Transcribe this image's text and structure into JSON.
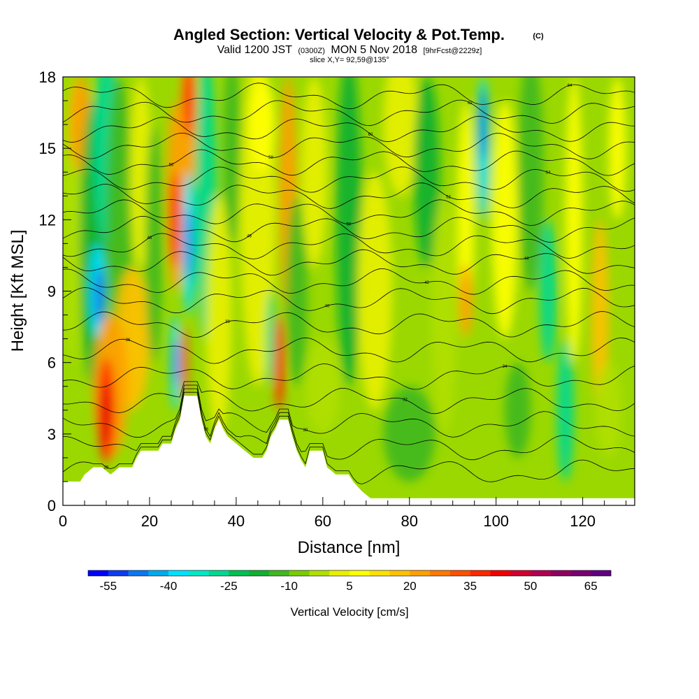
{
  "chart_data": {
    "type": "heatmap",
    "title": "Angled Section: Vertical Velocity & Pot.Temp.",
    "title_tag": "(C)",
    "subtitle_parts": [
      "Valid 1200 JST",
      "(0300Z)",
      "MON 5 Nov 2018",
      "[9hrFcst@2229z]"
    ],
    "slice_label": "slice X,Y= 92,59@135°",
    "xlabel": "Distance [nm]",
    "ylabel": "Height [Kft MSL]",
    "xlim": [
      0,
      132
    ],
    "ylim": [
      0,
      18
    ],
    "x_ticks": [
      "0",
      "20",
      "40",
      "60",
      "80",
      "100",
      "120"
    ],
    "x_tick_values": [
      0,
      20,
      40,
      60,
      80,
      100,
      120
    ],
    "y_ticks": [
      "0",
      "3",
      "6",
      "9",
      "12",
      "15",
      "18"
    ],
    "y_tick_values": [
      0,
      3,
      6,
      9,
      12,
      15,
      18
    ],
    "colorbar": {
      "label": "Vertical Velocity [cm/s]",
      "min": -60,
      "step": 5,
      "tick_labels": [
        "-55",
        "-40",
        "-25",
        "-10",
        "5",
        "20",
        "35",
        "50",
        "65"
      ],
      "tick_values": [
        -55,
        -40,
        -25,
        -10,
        5,
        20,
        35,
        50,
        65
      ],
      "colors": [
        "#0000ff",
        "#0a3cf0",
        "#0a78f0",
        "#00aaf0",
        "#00e0ff",
        "#00e8c8",
        "#00d890",
        "#00c050",
        "#10b030",
        "#40b820",
        "#78cc00",
        "#b0e000",
        "#e8f000",
        "#ffff00",
        "#ffe000",
        "#ffc000",
        "#ffa000",
        "#ff7800",
        "#ff5000",
        "#ff2800",
        "#f00000",
        "#d00030",
        "#b00050",
        "#900060",
        "#780070",
        "#600080"
      ]
    },
    "terrain_profile": [
      [
        0,
        1
      ],
      [
        4,
        1
      ],
      [
        5,
        1.3
      ],
      [
        7,
        1.6
      ],
      [
        9,
        1.6
      ],
      [
        11,
        1.3
      ],
      [
        13,
        1.6
      ],
      [
        16,
        1.6
      ],
      [
        17,
        2
      ],
      [
        18,
        2.3
      ],
      [
        22,
        2.3
      ],
      [
        23,
        2.6
      ],
      [
        25,
        2.6
      ],
      [
        26,
        3.2
      ],
      [
        27,
        3.6
      ],
      [
        28,
        4.6
      ],
      [
        31,
        4.6
      ],
      [
        32,
        3.6
      ],
      [
        33,
        2.9
      ],
      [
        34,
        2.6
      ],
      [
        35,
        3.2
      ],
      [
        36,
        3.6
      ],
      [
        37,
        3.2
      ],
      [
        38,
        2.9
      ],
      [
        40,
        2.6
      ],
      [
        42,
        2.3
      ],
      [
        44,
        2
      ],
      [
        46,
        2
      ],
      [
        47,
        2.3
      ],
      [
        48,
        2.9
      ],
      [
        49,
        3.2
      ],
      [
        50,
        3.6
      ],
      [
        52,
        3.6
      ],
      [
        53,
        2.9
      ],
      [
        54,
        2.3
      ],
      [
        55,
        1.9
      ],
      [
        56,
        1.6
      ],
      [
        57,
        2.3
      ],
      [
        60,
        2.3
      ],
      [
        61,
        1.6
      ],
      [
        63,
        1.3
      ],
      [
        66,
        1.3
      ],
      [
        67,
        1
      ],
      [
        69,
        0.6
      ],
      [
        71,
        0.3
      ],
      [
        132,
        0.3
      ]
    ],
    "theta_contours": [
      {
        "label": "25",
        "base": 1.4
      },
      {
        "label": "28",
        "base": 2.4
      },
      {
        "label": "30",
        "base": 3.4
      },
      {
        "label": "32",
        "base": 4.4
      },
      {
        "label": "34",
        "base": 5.4
      },
      {
        "label": "36",
        "base": 6.5
      },
      {
        "label": "38",
        "base": 7.6
      },
      {
        "label": "40",
        "base": 8.6
      },
      {
        "label": "42",
        "base": 9.4
      },
      {
        "label": "44",
        "base": 10.2
      },
      {
        "label": "46",
        "base": 10.9
      },
      {
        "label": "48",
        "base": 11.6
      },
      {
        "label": "50",
        "base": 12.3
      },
      {
        "label": "52",
        "base": 13.0
      },
      {
        "label": "54",
        "base": 13.7
      },
      {
        "label": "56",
        "base": 14.4
      },
      {
        "label": "58",
        "base": 15.1
      },
      {
        "label": "60",
        "base": 15.8
      },
      {
        "label": "62",
        "base": 16.5
      },
      {
        "label": "64",
        "base": 17.2
      }
    ]
  }
}
